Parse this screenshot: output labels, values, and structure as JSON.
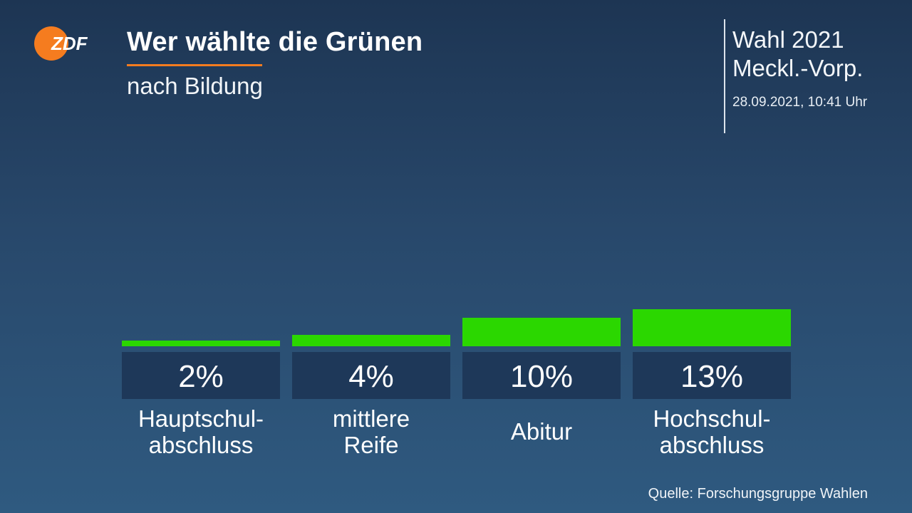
{
  "header": {
    "logo_text": "ZDF",
    "title": "Wer wählte die Grünen",
    "subtitle": "nach Bildung"
  },
  "info": {
    "line1": "Wahl 2021",
    "line2": "Meckl.-Vorp.",
    "date": "28.09.2021, 10:41 Uhr"
  },
  "source": "Quelle: Forschungsgruppe Wahlen",
  "colors": {
    "bar": "#2bd700",
    "accent": "#f57c1f",
    "value_box": "#1e3859"
  },
  "chart_data": {
    "type": "bar",
    "categories": [
      [
        "Hauptschul-",
        "abschluss"
      ],
      [
        "mittlere",
        "Reife"
      ],
      [
        "Abitur"
      ],
      [
        "Hochschul-",
        "abschluss"
      ]
    ],
    "values": [
      2,
      4,
      10,
      13
    ],
    "value_labels": [
      "2%",
      "4%",
      "10%",
      "13%"
    ],
    "unit": "%",
    "ylim": [
      0,
      13
    ],
    "grid": false
  }
}
